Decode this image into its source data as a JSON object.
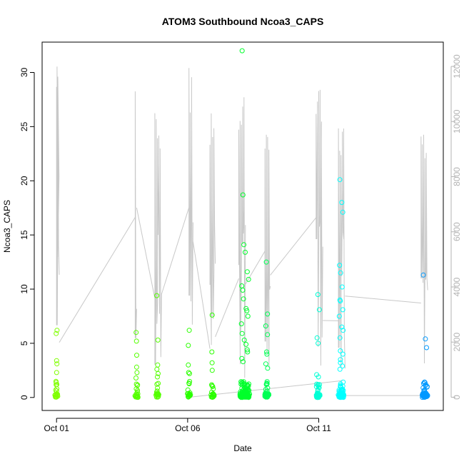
{
  "chart_data": {
    "type": "scatter",
    "title": "ATOM3 Southbound Ncoa3_CAPS",
    "xlabel": "Date",
    "ylabel": "Ncoa3_CAPS",
    "x_ticks": [
      {
        "value": 1.0,
        "label": "Oct 01"
      },
      {
        "value": 6.0,
        "label": "Oct 06"
      },
      {
        "value": 11.0,
        "label": "Oct 11"
      }
    ],
    "xlim": [
      0.45,
      15.75
    ],
    "ylim": [
      -1.2,
      32.8
    ],
    "y_ticks": [
      0,
      5,
      10,
      15,
      20,
      25,
      30
    ],
    "y2_ticks": [
      0,
      2000,
      4000,
      6000,
      8000,
      10000,
      12000
    ],
    "y2lim": [
      -480,
      12880
    ],
    "grid": false,
    "legend": "none",
    "secondary_color": "#c8c8c8",
    "axis_color_right": "#b3b3b3",
    "series": [
      {
        "color": "#80ff00",
        "x": [
          1.0
        ],
        "max": 6.2,
        "highs": [
          6.2,
          5.9,
          3.4,
          3.1,
          2.3,
          1.2,
          0.8
        ]
      },
      {
        "color": "#55ff00",
        "x": [
          4.05,
          4.85
        ],
        "max": 9.4,
        "highs": [
          3.9,
          2.2,
          1.8,
          9.4,
          6.0,
          5.3,
          5.2,
          3.0,
          2.8,
          2.6,
          2.3,
          1.9
        ]
      },
      {
        "color": "#2bff00",
        "x": [
          6.05,
          6.95
        ],
        "max": 7.6,
        "highs": [
          6.2,
          4.2,
          2.3,
          7.6,
          4.8,
          3.2,
          3.0,
          2.5,
          2.2
        ]
      },
      {
        "color": "#00ff2b",
        "x": [
          8.05,
          8.1,
          8.15,
          8.2,
          8.25,
          8.3
        ],
        "max": 32.0,
        "highs": [
          32.0,
          18.7,
          14.1,
          13.4,
          11.6,
          10.9,
          10.3,
          9.9,
          9.1,
          8.2,
          8.0,
          7.5,
          6.8,
          5.9,
          5.3,
          4.9,
          4.4,
          4.2,
          3.6,
          3.3
        ]
      },
      {
        "color": "#00ff55",
        "x": [
          9.0,
          9.05
        ],
        "max": 12.5,
        "highs": [
          12.5,
          7.7,
          6.6,
          5.8,
          4.2,
          4.0,
          3.1,
          2.7
        ]
      },
      {
        "color": "#00ffd5",
        "x": [
          10.95,
          11.0
        ],
        "max": 9.5,
        "highs": [
          9.5,
          8.1,
          5.5,
          5.0,
          2.1,
          1.9
        ]
      },
      {
        "color": "#00ffff",
        "x": [
          11.8,
          11.85,
          11.9
        ],
        "max": 20.1,
        "highs": [
          20.1,
          18.0,
          17.1,
          12.2,
          11.5,
          10.2,
          9.0,
          8.9,
          8.1,
          7.5,
          6.5,
          6.2,
          5.5,
          4.3,
          4.0,
          3.5,
          3.2,
          2.9,
          2.6
        ]
      },
      {
        "color": "#0099ff",
        "x": [
          15.0,
          15.05,
          15.1
        ],
        "max": 11.3,
        "highs": [
          11.3,
          5.4,
          4.6
        ]
      }
    ],
    "secondary_series": [
      {
        "x": [
          1.0,
          1.02,
          1.04,
          1.05
        ],
        "spike": 12000
      },
      {
        "x": [
          4.0
        ],
        "spike": 12000
      },
      {
        "x": [
          4.75,
          4.8,
          4.85,
          4.9,
          4.95
        ],
        "spike": 10600
      },
      {
        "x": [
          6.05,
          6.1,
          6.15
        ],
        "spike": 12000
      },
      {
        "x": [
          6.85,
          6.9,
          6.95,
          7.0
        ],
        "spike": 10900
      },
      {
        "x": [
          7.95,
          8.0,
          8.05,
          8.1,
          8.15
        ],
        "spike": 11500
      },
      {
        "x": [
          8.95,
          9.0,
          9.05,
          9.1
        ],
        "spike": 9600
      },
      {
        "x": [
          10.9,
          10.95,
          11.0,
          11.05,
          11.1
        ],
        "spike": 11800
      },
      {
        "x": [
          11.75,
          11.8,
          11.85,
          11.9,
          11.95
        ],
        "spike": 10000
      },
      {
        "x": [
          14.9,
          14.95,
          15.0,
          15.05,
          15.1
        ],
        "spike": 10100
      }
    ]
  }
}
